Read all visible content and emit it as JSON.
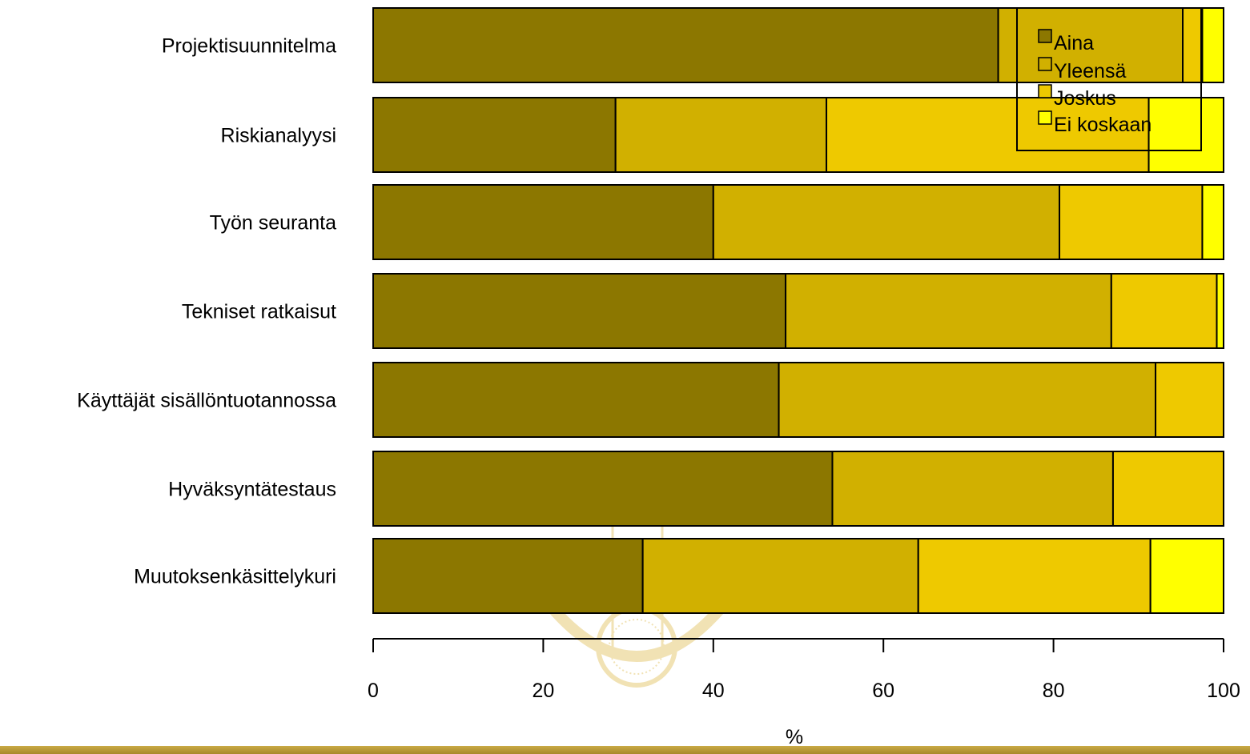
{
  "colors": {
    "Aina": "#8c7700",
    "Yleensä": "#d1b000",
    "Joskus": "#eec900",
    "Ei koskaan": "#ffff00",
    "watermark": "#f1e2b4",
    "band": "#b8972f"
  },
  "chart_data": {
    "type": "bar",
    "orientation": "horizontal",
    "stacked": true,
    "categories": [
      "Projektisuunnitelma",
      "Riskianalyysi",
      "Työn seuranta",
      "Tekniset ratkaisut",
      "Käyttäjät sisällöntuotannossa",
      "Hyväksyntätestaus",
      "Muutoksenkäsittelykuri"
    ],
    "series": [
      {
        "name": "Aina",
        "values": [
          73.5,
          28.5,
          40.0,
          48.5,
          47.7,
          54.0,
          31.7
        ]
      },
      {
        "name": "Yleensä",
        "values": [
          21.7,
          24.8,
          40.7,
          38.3,
          44.3,
          33.0,
          32.4
        ]
      },
      {
        "name": "Joskus",
        "values": [
          2.3,
          37.9,
          16.8,
          12.4,
          8.0,
          13.0,
          27.3
        ]
      },
      {
        "name": "Ei koskaan",
        "values": [
          2.5,
          8.8,
          2.5,
          0.8,
          0.0,
          0.0,
          8.6
        ]
      }
    ],
    "xlabel": "%",
    "ylabel": "",
    "xlim": [
      0,
      100
    ],
    "xticks": [
      "0",
      "20",
      "40",
      "60",
      "80",
      "100"
    ],
    "legend": {
      "placement": "top-right",
      "entries": [
        "Aina",
        "Yleensä",
        "Joskus",
        "Ei koskaan"
      ]
    },
    "grid": false
  }
}
